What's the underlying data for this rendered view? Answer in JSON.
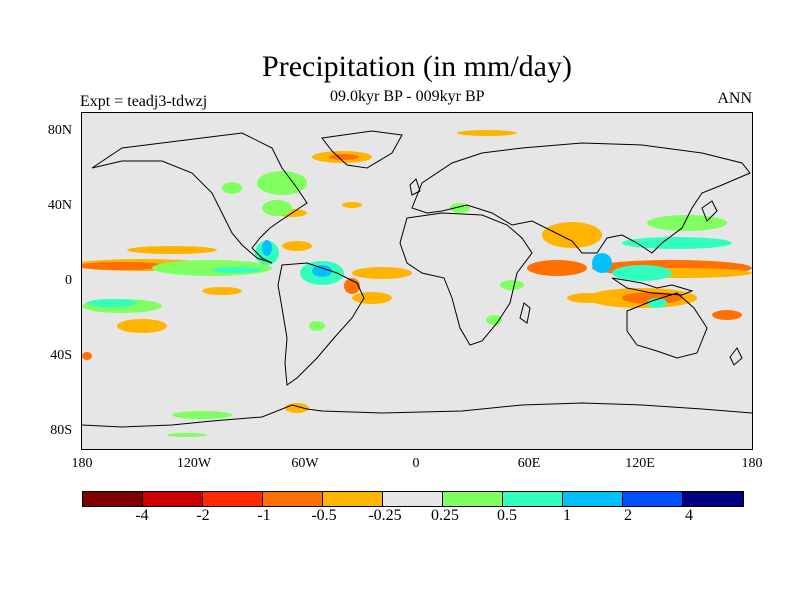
{
  "title": "Precipitation (in mm/day)",
  "subtitle": "09.0kyr BP - 009kyr BP",
  "expt_label": "Expt = teadj3-tdwzj",
  "season": "ANN",
  "lat_labels": [
    "80N",
    "40N",
    "0",
    "40S",
    "80S"
  ],
  "lon_labels": [
    "180",
    "120W",
    "60W",
    "0",
    "60E",
    "120E",
    "180"
  ],
  "colorbar": {
    "colors": [
      "#800000",
      "#cc0000",
      "#ff2a00",
      "#ff7000",
      "#ffb400",
      "#e6e6e6",
      "#80ff60",
      "#30ffc0",
      "#00c0ff",
      "#0050ff",
      "#000080"
    ],
    "labels": [
      "-4",
      "-2",
      "-1",
      "-0.5",
      "-0.25",
      "0.25",
      "0.5",
      "1",
      "2",
      "4"
    ]
  },
  "colors": {
    "background": "#e6e6e6",
    "dry_strong": "#ff7000",
    "dry": "#ffb400",
    "wet": "#80ff60",
    "wet_more": "#30ffc0",
    "wet_strong": "#00c0ff"
  }
}
